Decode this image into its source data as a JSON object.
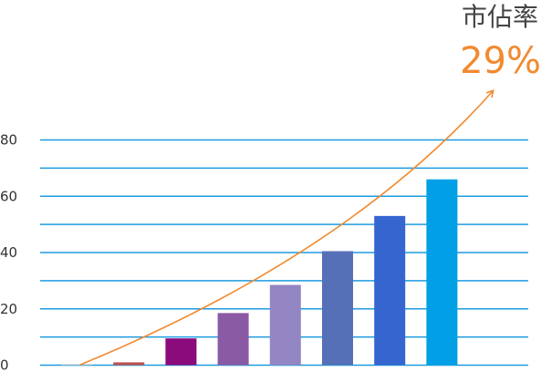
{
  "chart_data": {
    "type": "bar",
    "categories": [
      "",
      "",
      "",
      "",
      "",
      "",
      "",
      ""
    ],
    "values": [
      0,
      1,
      9.5,
      18.5,
      28.5,
      40.5,
      53,
      66
    ],
    "bar_colors": [
      "#c0c0c0",
      "#c0504d",
      "#8b0a7c",
      "#8b5aa5",
      "#9485c3",
      "#5670b8",
      "#3565cf",
      "#009fe6"
    ],
    "yticks": [
      0,
      20,
      40,
      60,
      80
    ],
    "ylim": [
      0,
      80
    ],
    "grid": true,
    "grid_color": "#1e9be0",
    "title": "",
    "xlabel": "",
    "ylabel": "",
    "trend_arrow_color": "#f28a30",
    "annotation": {
      "label": "市佔率",
      "value": "29%",
      "value_color": "#f28a30"
    }
  }
}
